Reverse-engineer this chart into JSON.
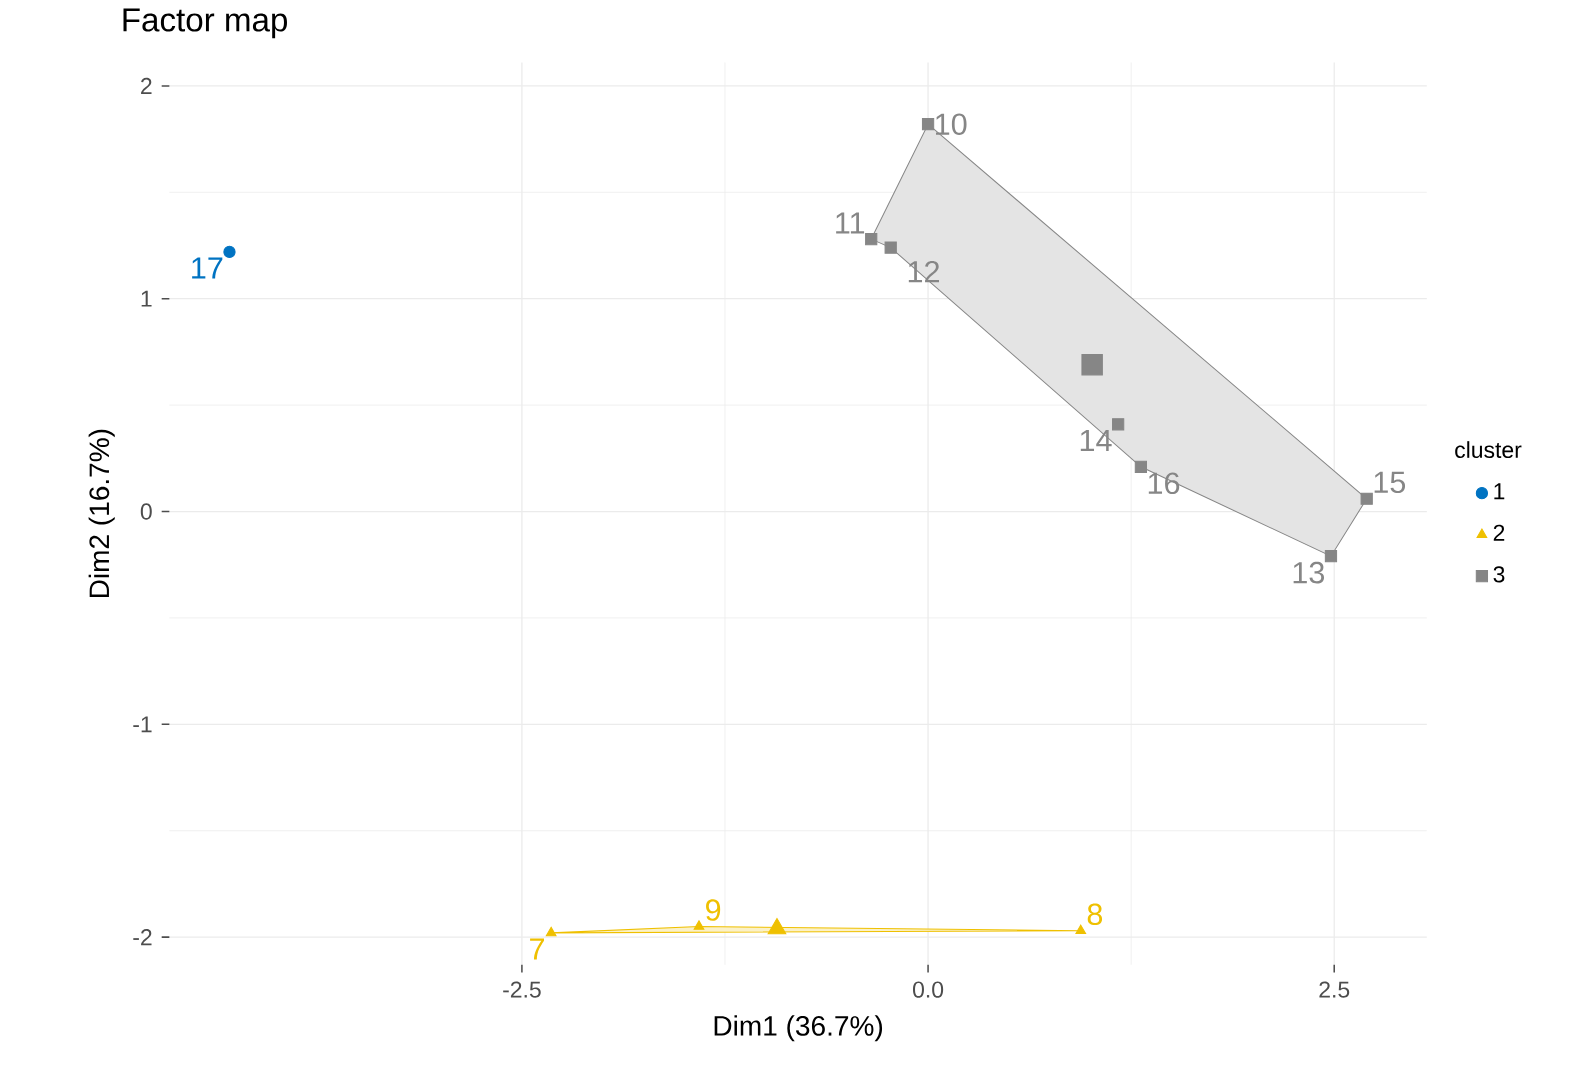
{
  "chart_data": {
    "type": "scatter",
    "title": "Factor map",
    "xlabel": "Dim1 (36.7%)",
    "ylabel": "Dim2 (16.7%)",
    "legend_title": "cluster",
    "xlim": [
      -4.67,
      3.07
    ],
    "ylim": [
      -2.13,
      2.11
    ],
    "xticks": [
      {
        "value": -2.5,
        "label": "-2.5"
      },
      {
        "value": 0,
        "label": "0.0"
      },
      {
        "value": 2.5,
        "label": "2.5"
      }
    ],
    "yticks": [
      -2,
      -1,
      0,
      1,
      2
    ],
    "grid": true,
    "legend": "right",
    "series": [
      {
        "type": "area",
        "color": "#E4E4E4",
        "x": [
          0.0,
          2.7,
          2.48,
          1.31,
          -0.23,
          -0.35
        ],
        "values": [
          1.82,
          0.06,
          -0.21,
          0.21,
          1.24,
          1.28
        ]
      },
      {
        "type": "area",
        "color": "#FBF1C7",
        "x": [
          -2.32,
          -1.41,
          0.94
        ],
        "values": [
          -1.98,
          -1.95,
          -1.97
        ]
      },
      {
        "name": "1",
        "color": "#0073C2",
        "marker": "circle",
        "x": [
          -4.3
        ],
        "values": [
          1.22
        ]
      },
      {
        "name": "2",
        "color": "#EFC000",
        "marker": "triangle",
        "x": [
          -2.32,
          -1.41,
          0.94
        ],
        "values": [
          -1.98,
          -1.95,
          -1.97
        ]
      },
      {
        "name": "3",
        "color": "#868686",
        "marker": "square",
        "x": [
          0.0,
          -0.35,
          -0.23,
          2.48,
          1.17,
          2.7,
          1.31
        ],
        "values": [
          1.82,
          1.28,
          1.24,
          -0.21,
          0.41,
          0.06,
          0.21
        ]
      },
      {
        "color": "#EFC000",
        "marker": "triangle",
        "x": [
          -0.93
        ],
        "values": [
          -1.96
        ]
      },
      {
        "color": "#868686",
        "marker": "square",
        "x": [
          1.01
        ],
        "values": [
          0.69
        ]
      }
    ],
    "annotations": [
      {
        "text": "17",
        "x": -4.3,
        "y": 1.22
      },
      {
        "text": "10",
        "x": 0.0,
        "y": 1.82
      },
      {
        "text": "11",
        "x": -0.35,
        "y": 1.28
      },
      {
        "text": "12",
        "x": -0.23,
        "y": 1.24
      },
      {
        "text": "14",
        "x": 1.17,
        "y": 0.41
      },
      {
        "text": "16",
        "x": 1.31,
        "y": 0.21
      },
      {
        "text": "15",
        "x": 2.7,
        "y": 0.06
      },
      {
        "text": "13",
        "x": 2.48,
        "y": -0.21
      },
      {
        "text": "7",
        "x": -2.32,
        "y": -1.98
      },
      {
        "text": "9",
        "x": -1.41,
        "y": -1.95
      },
      {
        "text": "8",
        "x": 0.94,
        "y": -1.97
      }
    ]
  }
}
